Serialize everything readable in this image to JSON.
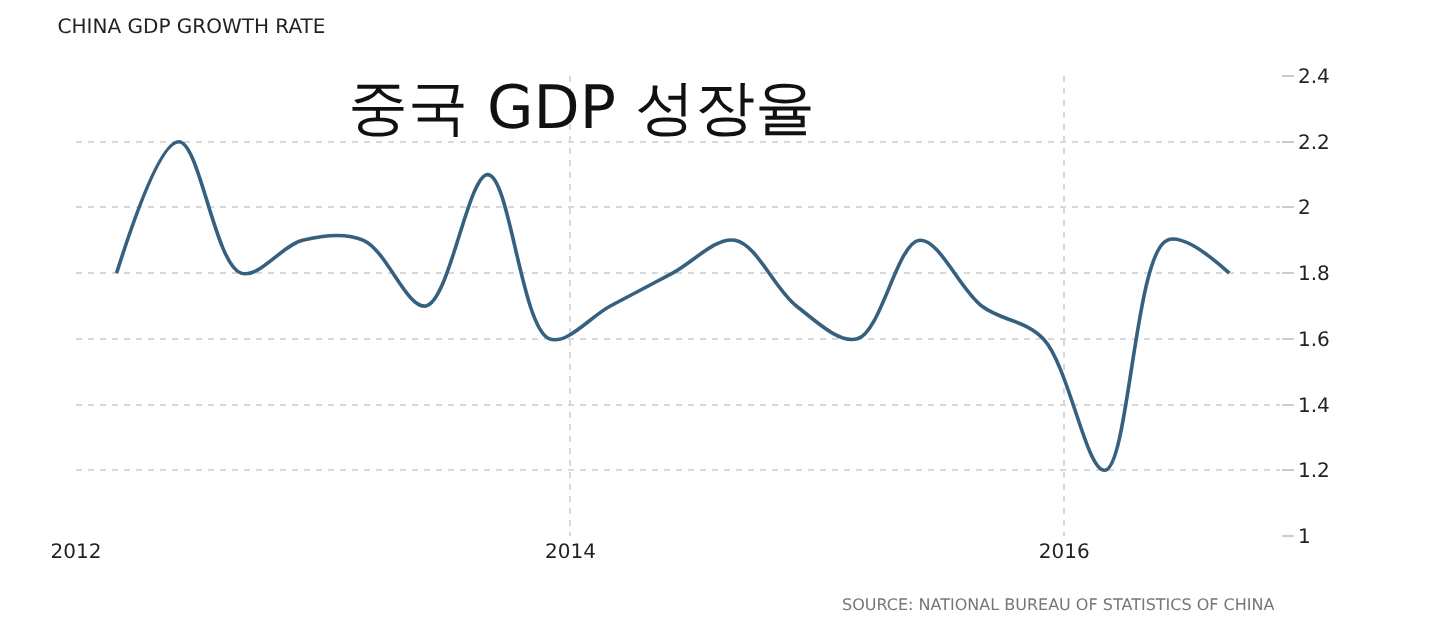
{
  "chart_data": {
    "type": "line",
    "title": "CHINA GDP GROWTH RATE",
    "x": [
      "2012-03",
      "2012-06",
      "2012-09",
      "2012-12",
      "2013-03",
      "2013-06",
      "2013-09",
      "2013-12",
      "2014-03",
      "2014-06",
      "2014-09",
      "2014-12",
      "2015-03",
      "2015-06",
      "2015-09",
      "2015-12",
      "2016-03",
      "2016-06",
      "2016-09"
    ],
    "series": [
      {
        "color": "#36607f",
        "values": [
          1.8,
          2.2,
          1.8,
          1.9,
          1.9,
          1.7,
          2.1,
          1.6,
          1.7,
          1.8,
          1.9,
          1.7,
          1.6,
          1.9,
          1.7,
          1.6,
          1.2,
          1.9,
          1.8
        ]
      }
    ],
    "xlim": [
      "2012-01-01",
      "2016-11-15"
    ],
    "xticks": [
      "2012",
      "2014",
      "2016"
    ],
    "ylim": [
      1,
      2.4
    ],
    "yticks": [
      1,
      1.2,
      1.4,
      1.6,
      1.8,
      2,
      2.2,
      2.4
    ],
    "grid": true,
    "marker": "none",
    "line_style": "solid",
    "annotations": [
      "중국 GDP 성장율",
      "SOURCE: NATIONAL BUREAU OF STATISTICS OF CHINA"
    ]
  }
}
